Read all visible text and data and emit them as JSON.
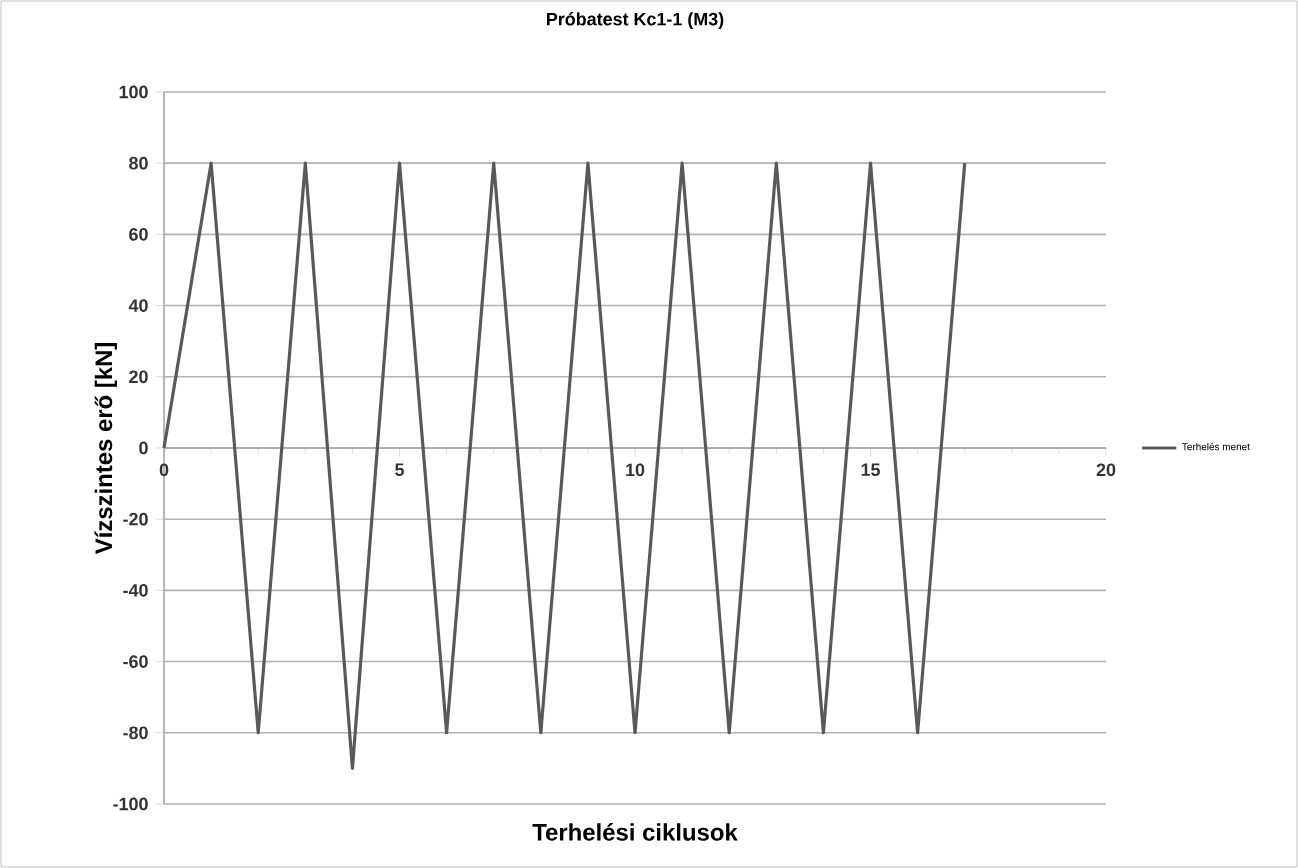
{
  "chart_data": {
    "type": "line",
    "title": "Próbatest Kc1-1 (M3)",
    "xlabel": "Terhelési ciklusok",
    "ylabel": "Vízszintes erő [kN]",
    "series": [
      {
        "name": "Terhelés menet",
        "color": "#595959",
        "x": [
          0,
          1,
          2,
          3,
          4,
          5,
          6,
          7,
          8,
          9,
          10,
          11,
          12,
          13,
          14,
          15,
          16,
          17
        ],
        "values": [
          0,
          80,
          -80,
          80,
          -90,
          80,
          -80,
          80,
          -80,
          80,
          -80,
          80,
          -80,
          80,
          -80,
          80,
          -80,
          80
        ]
      }
    ],
    "xlim": [
      0,
      20
    ],
    "xticks": [
      0,
      5,
      10,
      15,
      20
    ],
    "ylim": [
      -100,
      100
    ],
    "yticks": [
      -100,
      -80,
      -60,
      -40,
      -20,
      0,
      20,
      40,
      60,
      80,
      100
    ],
    "grid": "y",
    "legend": "right",
    "marker": "none",
    "line_style": "solid"
  }
}
